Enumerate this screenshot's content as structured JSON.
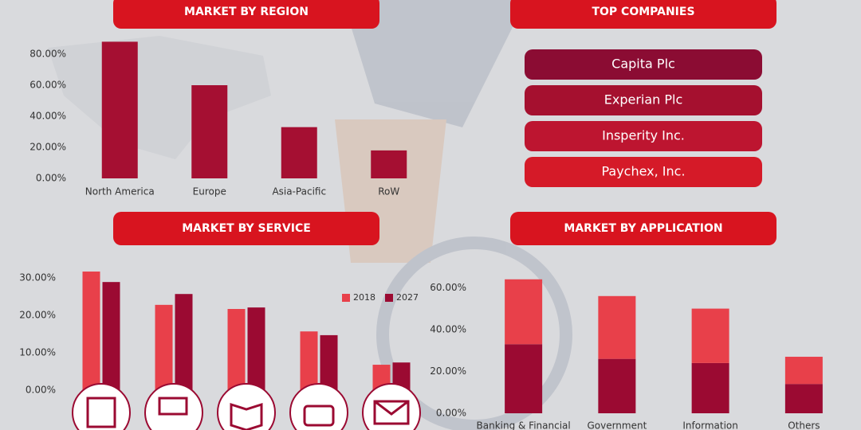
{
  "chart_data": [
    {
      "type": "bar",
      "title": "MARKET BY REGION",
      "categories": [
        "North America",
        "Europe",
        "Asia-Pacific",
        "RoW"
      ],
      "values": [
        88,
        60,
        33,
        18
      ],
      "color": "#a50f32",
      "ylim": [
        0,
        90
      ],
      "yticks": [
        {
          "value": 0,
          "label": "0.00%"
        },
        {
          "value": 20,
          "label": "20.00%"
        },
        {
          "value": 40,
          "label": "40.00%"
        },
        {
          "value": 60,
          "label": "60.00%"
        },
        {
          "value": 80,
          "label": "80.00%"
        }
      ]
    },
    {
      "type": "grouped",
      "title": "MARKET BY SERVICE",
      "categories": [
        null,
        null,
        null,
        null,
        null
      ],
      "series": [
        {
          "name": "2018",
          "color": "#e8404a",
          "values": [
            31.7,
            22.8,
            21.7,
            15.7,
            6.8
          ]
        },
        {
          "name": "2027",
          "color": "#9b0a32",
          "values": [
            28.9,
            25.7,
            22.1,
            14.7,
            7.4
          ]
        }
      ],
      "ylim": [
        0,
        35
      ],
      "yticks": [
        {
          "value": 0,
          "label": "0.00%"
        },
        {
          "value": 10,
          "label": "10.00%"
        },
        {
          "value": 20,
          "label": "20.00%"
        },
        {
          "value": 30,
          "label": "30.00%"
        }
      ],
      "legend": "top-right"
    },
    {
      "type": "stacked",
      "title": "MARKET BY APPLICATION",
      "categories": [
        "Banking & Financial",
        "Government",
        "Information",
        "Others"
      ],
      "series": [
        {
          "color": "#9b0a32",
          "values": [
            33,
            26,
            24,
            14
          ]
        },
        {
          "color": "#e8404a",
          "values": [
            31,
            30,
            26,
            13
          ]
        }
      ],
      "ylim": [
        0,
        70
      ],
      "yticks": [
        {
          "value": 0,
          "label": "0.00%"
        },
        {
          "value": 20,
          "label": "20.00%"
        },
        {
          "value": 40,
          "label": "40.00%"
        },
        {
          "value": 60,
          "label": "60.00%"
        }
      ]
    }
  ],
  "companies": {
    "title": "TOP COMPANIES",
    "items": [
      "Capita Plc",
      "Experian Plc",
      "Insperity Inc.",
      "Paychex, Inc."
    ]
  }
}
